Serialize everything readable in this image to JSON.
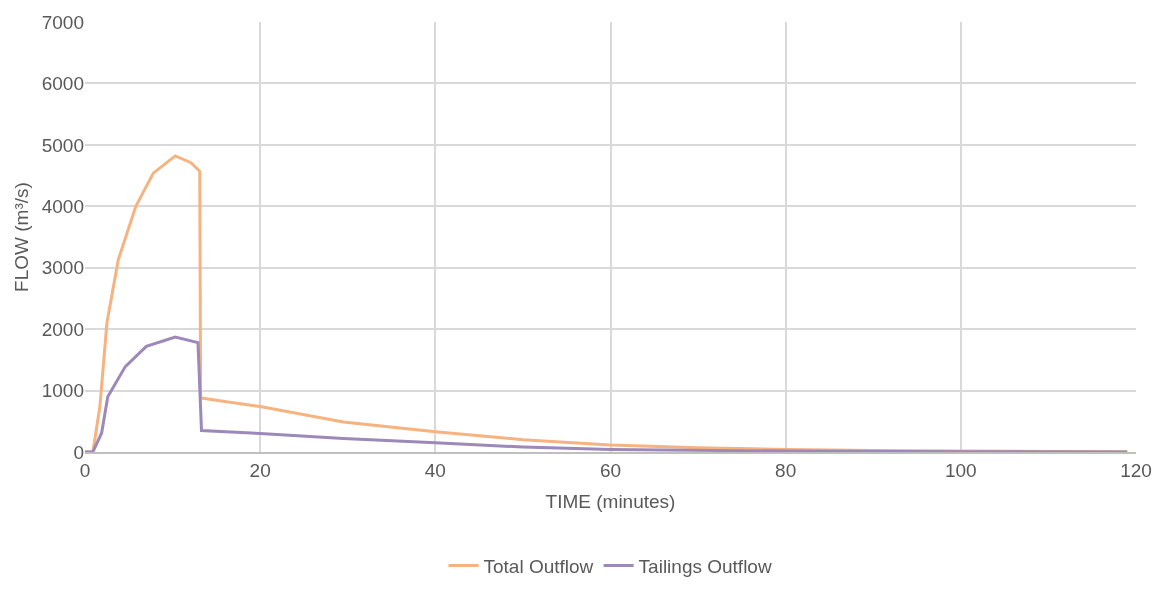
{
  "chart_data": {
    "type": "line",
    "xlabel": "TIME (minutes)",
    "ylabel": "FLOW (m³/s)",
    "xlim": [
      0,
      120
    ],
    "xticks": [
      0,
      20,
      40,
      60,
      80,
      100,
      120
    ],
    "ylim": [
      0,
      7000
    ],
    "yticks": [
      0,
      1000,
      2000,
      3000,
      4000,
      5000,
      6000,
      7000
    ],
    "grid": true,
    "legend": "bottom",
    "marker": "none",
    "line_style": "solid",
    "series": [
      {
        "name": "Total Outflow",
        "color": "#f6b27f",
        "x": [
          0,
          0.9,
          1.7,
          2.5,
          3.8,
          5.8,
          7.8,
          10.3,
          12.1,
          13.1,
          13.2,
          20,
          29.5,
          40,
          50,
          60,
          70,
          80,
          90,
          100,
          110,
          119
        ],
        "values": [
          0,
          0,
          740,
          2100,
          3130,
          4000,
          4540,
          4820,
          4710,
          4570,
          880,
          740,
          490,
          330,
          200,
          115,
          70,
          40,
          25,
          15,
          10,
          5
        ]
      },
      {
        "name": "Tailings Outflow",
        "color": "#9c88b9",
        "x": [
          0,
          0.9,
          1.9,
          2.6,
          4.6,
          7,
          10.3,
          12.9,
          13.3,
          20,
          29.5,
          40,
          50,
          60,
          80,
          100,
          119
        ],
        "values": [
          0,
          0,
          310,
          900,
          1390,
          1720,
          1870,
          1780,
          350,
          300,
          220,
          150,
          80,
          40,
          15,
          5,
          2
        ]
      }
    ]
  }
}
